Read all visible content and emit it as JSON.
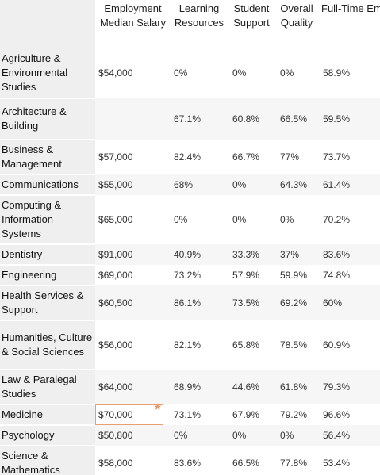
{
  "headers": {
    "name": "",
    "employment_median_salary": "Employment Median Salary",
    "learning_resources": "Learning Resources",
    "student_support": "Student Support",
    "overall_quality": "Overall Quality",
    "full_time_employment": "Full-Time Employment"
  },
  "rows": [
    {
      "name": "Agriculture & Environmental Studies",
      "salary": "$54,000",
      "learning": "0%",
      "support": "0%",
      "quality": "0%",
      "fulltime": "58.9%"
    },
    {
      "name": "Architecture & Building",
      "salary": "",
      "learning": "67.1%",
      "support": "60.8%",
      "quality": "66.5%",
      "fulltime": "59.5%"
    },
    {
      "name": "Business & Management",
      "salary": "$57,000",
      "learning": "82.4%",
      "support": "66.7%",
      "quality": "77%",
      "fulltime": "73.7%"
    },
    {
      "name": "Communications",
      "salary": "$55,000",
      "learning": "68%",
      "support": "0%",
      "quality": "64.3%",
      "fulltime": "61.4%"
    },
    {
      "name": "Computing & Information Systems",
      "salary": "$65,000",
      "learning": "0%",
      "support": "0%",
      "quality": "0%",
      "fulltime": "70.2%"
    },
    {
      "name": "Dentistry",
      "salary": "$91,000",
      "learning": "40.9%",
      "support": "33.3%",
      "quality": "37%",
      "fulltime": "83.6%"
    },
    {
      "name": "Engineering",
      "salary": "$69,000",
      "learning": "73.2%",
      "support": "57.9%",
      "quality": "59.9%",
      "fulltime": "74.8%"
    },
    {
      "name": "Health Services & Support",
      "salary": "$60,500",
      "learning": "86.1%",
      "support": "73.5%",
      "quality": "69.2%",
      "fulltime": "60%"
    },
    {
      "name": "Humanities, Culture & Social Sciences",
      "salary": "$56,000",
      "learning": "82.1%",
      "support": "65.8%",
      "quality": "78.5%",
      "fulltime": "60.9%"
    },
    {
      "name": "Law & Paralegal Studies",
      "salary": "$64,000",
      "learning": "68.9%",
      "support": "44.6%",
      "quality": "61.8%",
      "fulltime": "79.3%"
    },
    {
      "name": "Medicine",
      "salary": "$70,000",
      "learning": "73.1%",
      "support": "67.9%",
      "quality": "79.2%",
      "fulltime": "96.6%"
    },
    {
      "name": "Psychology",
      "salary": "$50,800",
      "learning": "0%",
      "support": "0%",
      "quality": "0%",
      "fulltime": "56.4%"
    },
    {
      "name": "Science & Mathematics",
      "salary": "$58,000",
      "learning": "83.6%",
      "support": "66.5%",
      "quality": "77.8%",
      "fulltime": "53.4%"
    }
  ],
  "selected_cell": {
    "row": 10,
    "column": "salary",
    "icon": "star-icon",
    "accent": "#e8956a"
  }
}
